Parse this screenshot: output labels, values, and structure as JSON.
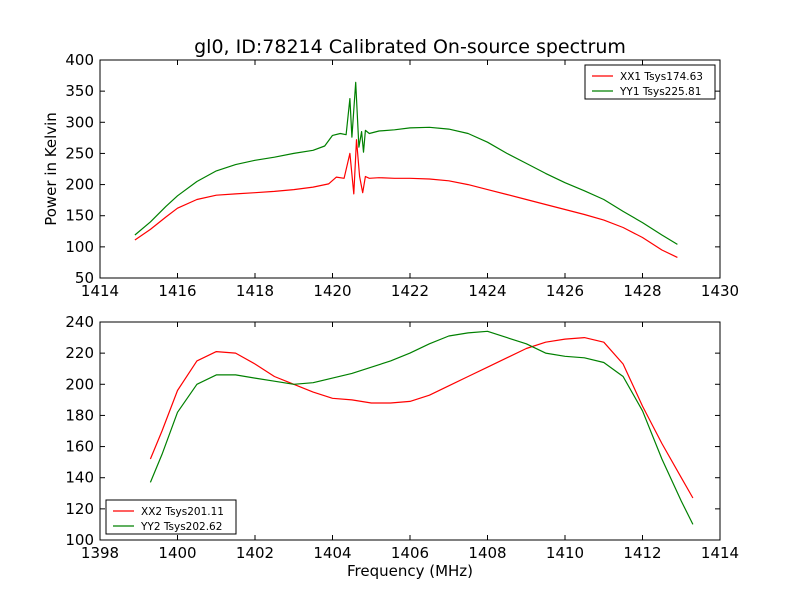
{
  "title": "gl0, ID:78214 Calibrated On-source spectrum",
  "colors": {
    "red": "#ff0000",
    "green": "#008000",
    "axes": "#000000",
    "background": "#ffffff"
  },
  "chart_data": [
    {
      "type": "line",
      "title": "gl0, ID:78214 Calibrated On-source spectrum",
      "xlabel": "",
      "ylabel": "Power in Kelvin",
      "xlim": [
        1414,
        1430
      ],
      "ylim": [
        50,
        400
      ],
      "xticks": [
        "1414",
        "1416",
        "1418",
        "1420",
        "1422",
        "1424",
        "1426",
        "1428",
        "1430"
      ],
      "yticks": [
        "50",
        "100",
        "150",
        "200",
        "250",
        "300",
        "350",
        "400"
      ],
      "grid": false,
      "legend_position": "upper right",
      "series": [
        {
          "name": "XX1 Tsys174.63",
          "color": "#ff0000",
          "x": [
            1414.9,
            1415.3,
            1415.7,
            1416.0,
            1416.5,
            1417.0,
            1417.5,
            1418.0,
            1418.5,
            1419.0,
            1419.5,
            1419.9,
            1420.1,
            1420.3,
            1420.45,
            1420.55,
            1420.62,
            1420.7,
            1420.78,
            1420.85,
            1420.95,
            1421.2,
            1421.6,
            1422.0,
            1422.5,
            1423.0,
            1423.5,
            1424.0,
            1424.5,
            1425.0,
            1425.5,
            1426.0,
            1426.5,
            1427.0,
            1427.5,
            1428.0,
            1428.5,
            1428.9
          ],
          "y": [
            111,
            128,
            148,
            162,
            176,
            183,
            185,
            187,
            189,
            192,
            196,
            201,
            212,
            210,
            250,
            185,
            272,
            213,
            187,
            213,
            210,
            211,
            210,
            210,
            209,
            206,
            200,
            192,
            184,
            176,
            168,
            160,
            152,
            143,
            131,
            115,
            95,
            83
          ]
        },
        {
          "name": "YY1 Tsys225.81",
          "color": "#008000",
          "x": [
            1414.9,
            1415.3,
            1415.7,
            1416.0,
            1416.5,
            1417.0,
            1417.5,
            1418.0,
            1418.5,
            1419.0,
            1419.5,
            1419.8,
            1420.0,
            1420.2,
            1420.35,
            1420.45,
            1420.5,
            1420.6,
            1420.68,
            1420.75,
            1420.8,
            1420.85,
            1420.95,
            1421.2,
            1421.6,
            1422.0,
            1422.5,
            1423.0,
            1423.5,
            1424.0,
            1424.5,
            1425.0,
            1425.5,
            1426.0,
            1426.5,
            1427.0,
            1427.5,
            1428.0,
            1428.5,
            1428.9
          ],
          "y": [
            119,
            140,
            165,
            182,
            205,
            222,
            232,
            239,
            244,
            250,
            255,
            262,
            279,
            282,
            280,
            338,
            276,
            364,
            260,
            285,
            252,
            287,
            282,
            286,
            288,
            291,
            292,
            289,
            282,
            268,
            250,
            234,
            218,
            203,
            190,
            176,
            157,
            139,
            119,
            104
          ]
        }
      ]
    },
    {
      "type": "line",
      "title": "",
      "xlabel": "Frequency (MHz)",
      "ylabel": "",
      "xlim": [
        1398,
        1414
      ],
      "ylim": [
        100,
        240
      ],
      "xticks": [
        "1398",
        "1400",
        "1402",
        "1404",
        "1406",
        "1408",
        "1410",
        "1412",
        "1414"
      ],
      "yticks": [
        "100",
        "120",
        "140",
        "160",
        "180",
        "200",
        "220",
        "240"
      ],
      "grid": false,
      "legend_position": "lower left",
      "series": [
        {
          "name": "XX2 Tsys201.11",
          "color": "#ff0000",
          "x": [
            1399.3,
            1399.6,
            1400.0,
            1400.5,
            1401.0,
            1401.5,
            1402.0,
            1402.5,
            1403.0,
            1403.5,
            1404.0,
            1404.5,
            1405.0,
            1405.5,
            1406.0,
            1406.5,
            1407.0,
            1407.5,
            1408.0,
            1408.5,
            1409.0,
            1409.5,
            1410.0,
            1410.5,
            1411.0,
            1411.5,
            1412.0,
            1412.5,
            1413.0,
            1413.3
          ],
          "y": [
            152,
            170,
            196,
            215,
            221,
            220,
            213,
            205,
            200,
            195,
            191,
            190,
            188,
            188,
            189,
            193,
            199,
            205,
            211,
            217,
            223,
            227,
            229,
            230,
            227,
            213,
            186,
            162,
            140,
            127
          ]
        },
        {
          "name": "YY2 Tsys202.62",
          "color": "#008000",
          "x": [
            1399.3,
            1399.6,
            1400.0,
            1400.5,
            1401.0,
            1401.5,
            1402.0,
            1402.5,
            1403.0,
            1403.5,
            1404.0,
            1404.5,
            1405.0,
            1405.5,
            1406.0,
            1406.5,
            1407.0,
            1407.5,
            1408.0,
            1408.5,
            1409.0,
            1409.5,
            1410.0,
            1410.5,
            1411.0,
            1411.5,
            1412.0,
            1412.5,
            1413.0,
            1413.3
          ],
          "y": [
            137,
            155,
            182,
            200,
            206,
            206,
            204,
            202,
            200,
            201,
            204,
            207,
            211,
            215,
            220,
            226,
            231,
            233,
            234,
            230,
            226,
            220,
            218,
            217,
            214,
            205,
            183,
            152,
            125,
            110
          ]
        }
      ]
    }
  ]
}
